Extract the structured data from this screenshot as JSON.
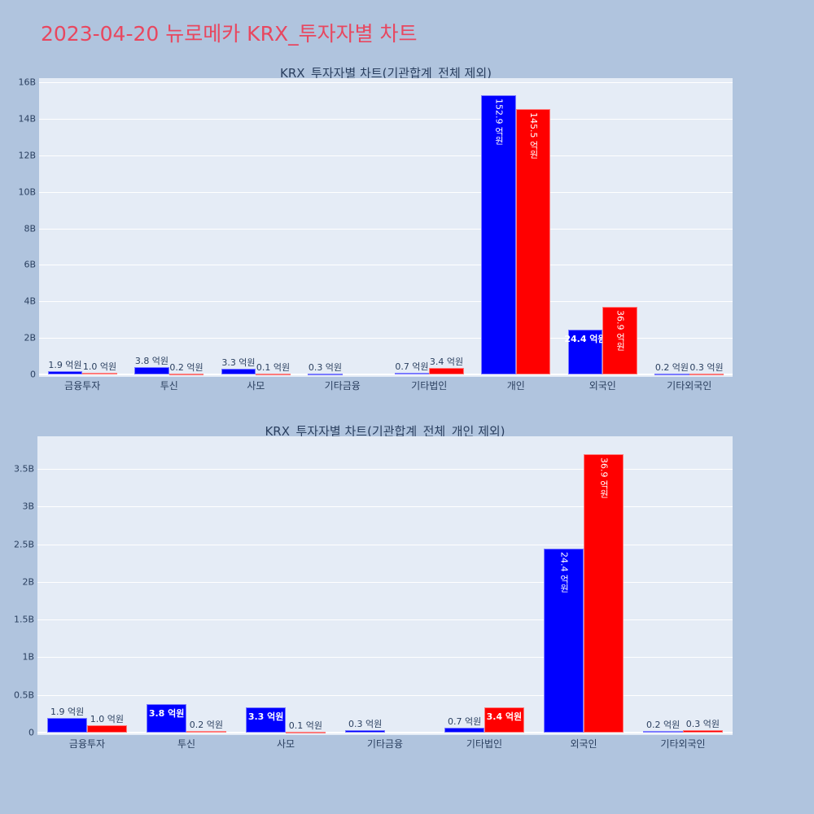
{
  "header": {
    "title": "2023-04-20 뉴로메카 KRX_투자자별 차트"
  },
  "colors": {
    "title": "#e8475f",
    "background": "#b0c4de",
    "plot_bg": "#e5ecf6",
    "series_blue": "#0000ff",
    "series_red": "#ff0000",
    "text": "#2a3f5f"
  },
  "chart_data": [
    {
      "type": "bar",
      "title": "KRX_투자자별 차트(기관합계_전체 제외)",
      "categories": [
        "금융투자",
        "투신",
        "사모",
        "기타금융",
        "기타법인",
        "개인",
        "외국인",
        "기타외국인"
      ],
      "series": [
        {
          "name": "blue",
          "color": "#0000ff",
          "values": [
            0.19,
            0.38,
            0.33,
            0.03,
            0.07,
            15.29,
            2.44,
            0.02
          ],
          "labels": [
            "1.9 억원",
            "3.8 억원",
            "3.3 억원",
            "0.3 억원",
            "0.7 억원",
            "152.9 억원",
            "24.4 억원",
            "0.2 억원"
          ]
        },
        {
          "name": "red",
          "color": "#ff0000",
          "values": [
            0.1,
            0.02,
            0.01,
            0,
            0.34,
            14.55,
            3.69,
            0.03
          ],
          "labels": [
            "1.0 억원",
            "0.2 억원",
            "0.1 억원",
            "",
            "3.4 억원",
            "145.5 억원",
            "36.9 억원",
            "0.3 억원"
          ]
        }
      ],
      "yticks": [
        "0",
        "2B",
        "4B",
        "6B",
        "8B",
        "10B",
        "12B",
        "14B",
        "16B"
      ],
      "ytick_values": [
        0,
        2,
        4,
        6,
        8,
        10,
        12,
        14,
        16
      ],
      "xlabel": "",
      "ylabel": "",
      "ylim": [
        0,
        16.2
      ],
      "grid": true,
      "legend": "none"
    },
    {
      "type": "bar",
      "title": "KRX_투자자별 차트(기관합계_전체_개인 제외)",
      "categories": [
        "금융투자",
        "투신",
        "사모",
        "기타금융",
        "기타법인",
        "외국인",
        "기타외국인"
      ],
      "series": [
        {
          "name": "blue",
          "color": "#0000ff",
          "values": [
            0.19,
            0.38,
            0.33,
            0.03,
            0.07,
            2.44,
            0.02
          ],
          "labels": [
            "1.9 억원",
            "3.8 억원",
            "3.3 억원",
            "0.3 억원",
            "0.7 억원",
            "24.4 억원",
            "0.2 억원"
          ]
        },
        {
          "name": "red",
          "color": "#ff0000",
          "values": [
            0.1,
            0.02,
            0.01,
            0,
            0.34,
            3.69,
            0.03
          ],
          "labels": [
            "1.0 억원",
            "0.2 억원",
            "0.1 억원",
            "",
            "3.4 억원",
            "36.9 억원",
            "0.3 억원"
          ]
        }
      ],
      "yticks": [
        "0",
        "0.5B",
        "1B",
        "1.5B",
        "2B",
        "2.5B",
        "3B",
        "3.5B"
      ],
      "ytick_values": [
        0,
        0.5,
        1,
        1.5,
        2,
        2.5,
        3,
        3.5
      ],
      "xlabel": "",
      "ylabel": "",
      "ylim": [
        0,
        3.9
      ],
      "grid": true,
      "legend": "none"
    }
  ]
}
